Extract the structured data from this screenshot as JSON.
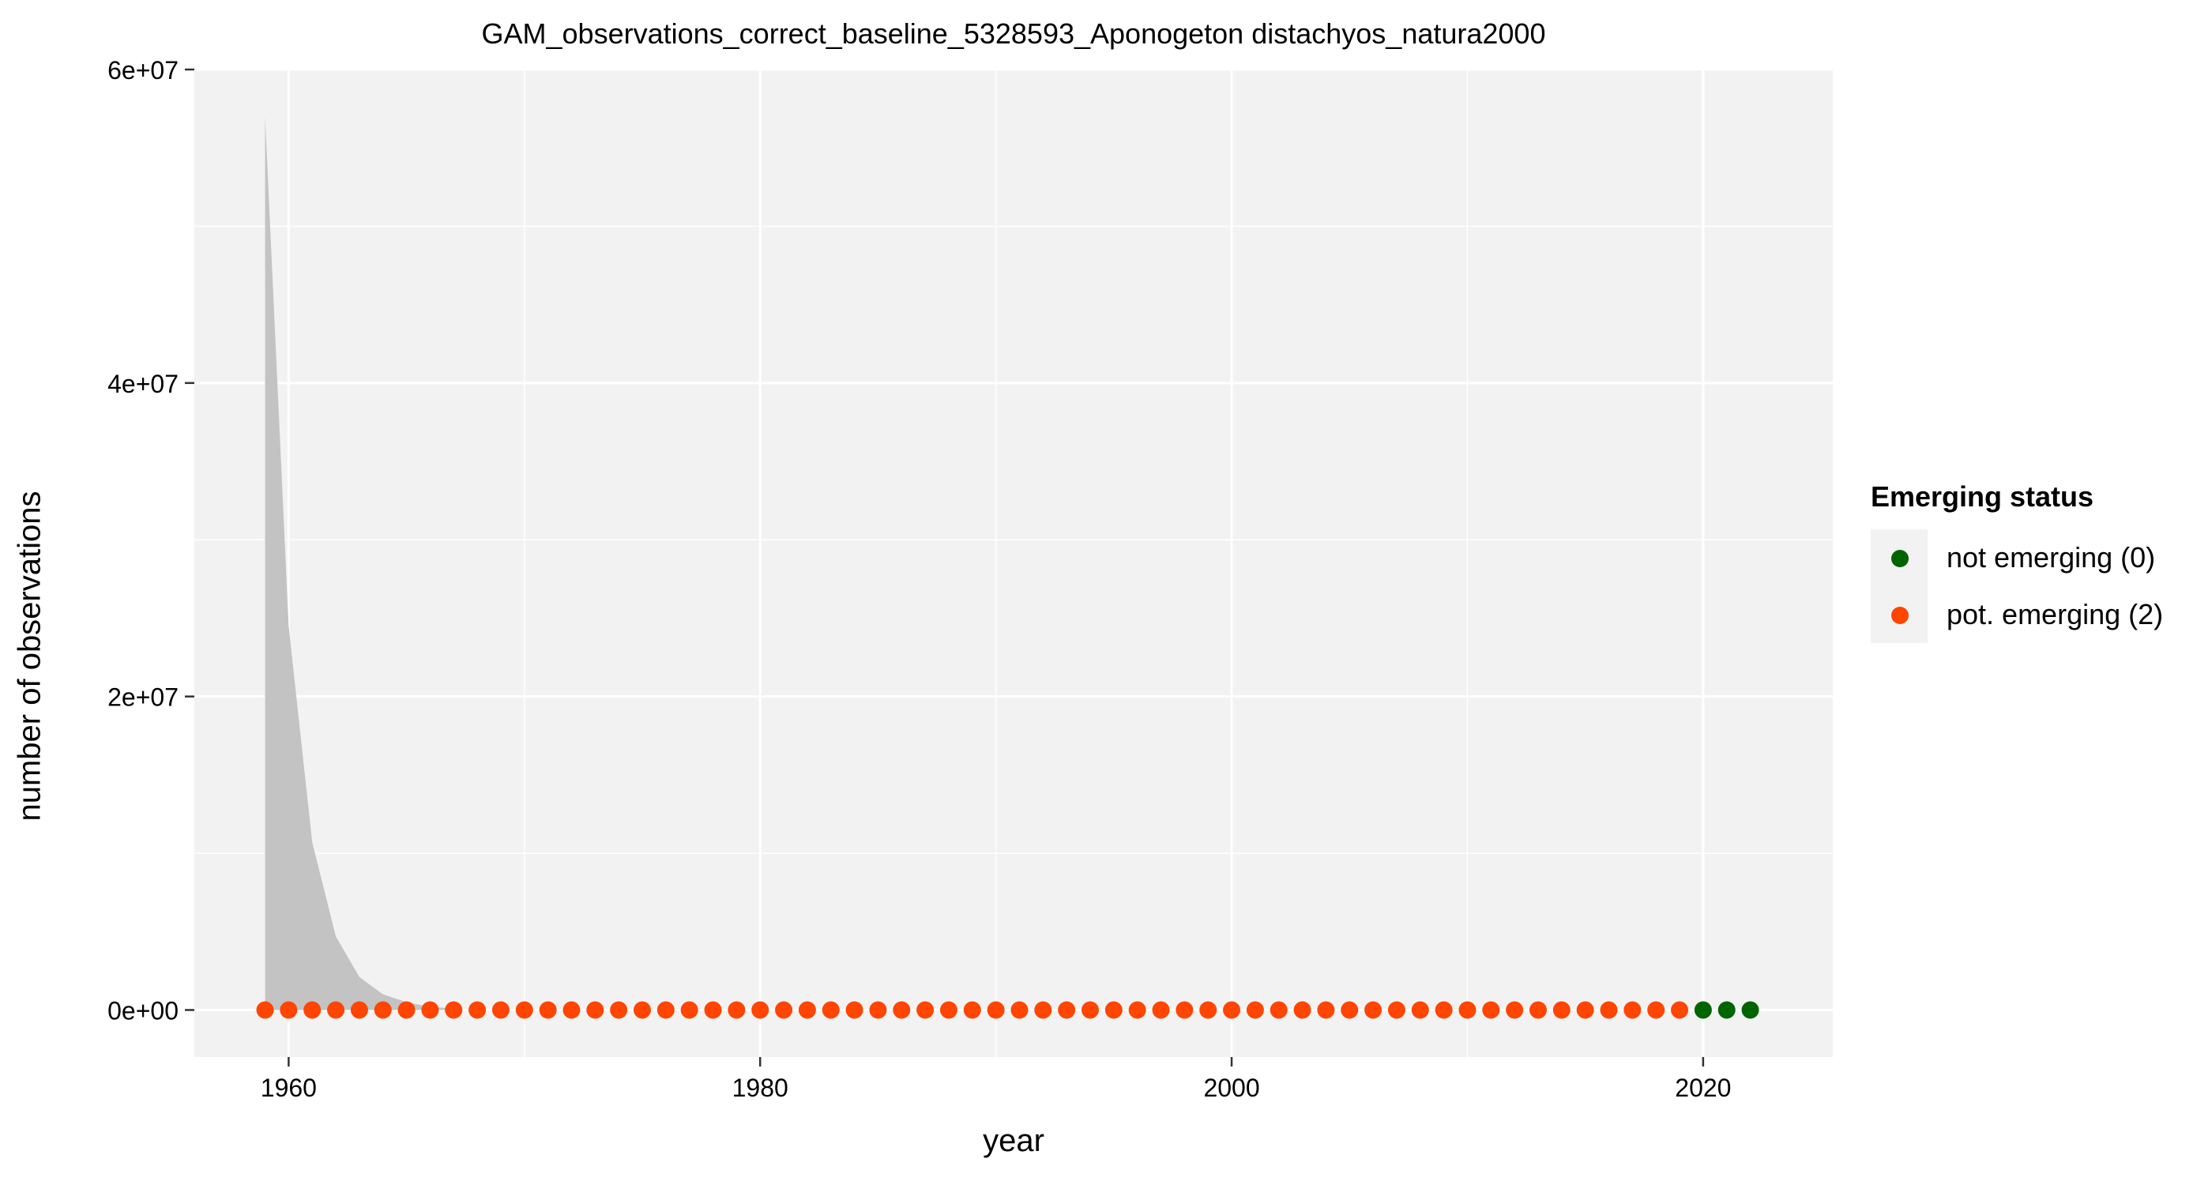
{
  "chart_data": {
    "type": "scatter",
    "title": "GAM_observations_correct_baseline_5328593_Aponogeton distachyos_natura2000",
    "xlabel": "year",
    "ylabel": "number of observations",
    "xlim": [
      1956,
      2025.5
    ],
    "ylim": [
      -3000000,
      60000000
    ],
    "x_ticks": [
      1960,
      1980,
      2000,
      2020
    ],
    "y_ticks": [
      0,
      20000000,
      40000000,
      60000000
    ],
    "y_tick_labels": [
      "0e+00",
      "2e+07",
      "4e+07",
      "6e+07"
    ],
    "grid": true,
    "legend_position": "right",
    "legend_title": "Emerging status",
    "legend": [
      {
        "label": "not emerging (0)",
        "color": "#006400"
      },
      {
        "label": "pot. emerging (2)",
        "color": "#ff4500"
      }
    ],
    "confidence_band": {
      "color": "#c3c3c3",
      "x": [
        1959,
        1960,
        1961,
        1962,
        1963,
        1964,
        1965,
        1966,
        1967
      ],
      "upper": [
        57000000,
        24500000,
        10700000,
        4700000,
        2100000,
        1000000,
        500000,
        200000,
        100000
      ],
      "lower": [
        0,
        0,
        0,
        0,
        0,
        0,
        0,
        0,
        0
      ]
    },
    "series": [
      {
        "name": "pot. emerging (2)",
        "color": "#ff4500",
        "x": [
          1959,
          1960,
          1961,
          1962,
          1963,
          1964,
          1965,
          1966,
          1967,
          1968,
          1969,
          1970,
          1971,
          1972,
          1973,
          1974,
          1975,
          1976,
          1977,
          1978,
          1979,
          1980,
          1981,
          1982,
          1983,
          1984,
          1985,
          1986,
          1987,
          1988,
          1989,
          1990,
          1991,
          1992,
          1993,
          1994,
          1995,
          1996,
          1997,
          1998,
          1999,
          2000,
          2001,
          2002,
          2003,
          2004,
          2005,
          2006,
          2007,
          2008,
          2009,
          2010,
          2011,
          2012,
          2013,
          2014,
          2015,
          2016,
          2017,
          2018,
          2019
        ],
        "y": [
          0,
          0,
          0,
          0,
          0,
          0,
          0,
          0,
          0,
          0,
          0,
          0,
          0,
          0,
          0,
          0,
          0,
          0,
          0,
          0,
          0,
          0,
          0,
          0,
          0,
          0,
          0,
          0,
          0,
          0,
          0,
          0,
          0,
          0,
          0,
          0,
          0,
          0,
          0,
          0,
          0,
          0,
          0,
          0,
          0,
          0,
          0,
          0,
          0,
          0,
          0,
          0,
          0,
          0,
          0,
          0,
          0,
          0,
          0,
          0,
          0
        ]
      },
      {
        "name": "not emerging (0)",
        "color": "#006400",
        "x": [
          2020,
          2021,
          2022
        ],
        "y": [
          0,
          0,
          0
        ]
      }
    ]
  }
}
